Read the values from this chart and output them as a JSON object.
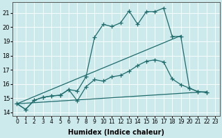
{
  "bg_color": "#cce9ec",
  "grid_color": "#aad4d8",
  "line_color": "#1e6b6b",
  "xlim": [
    -0.5,
    23.5
  ],
  "ylim": [
    13.75,
    21.75
  ],
  "xtick_vals": [
    0,
    1,
    2,
    3,
    4,
    5,
    6,
    7,
    8,
    9,
    10,
    11,
    12,
    13,
    14,
    15,
    16,
    17,
    18,
    19,
    20,
    21,
    22,
    23
  ],
  "ytick_vals": [
    14,
    15,
    16,
    17,
    18,
    19,
    20,
    21
  ],
  "xlabel": "Humidex (Indice chaleur)",
  "line_flat": {
    "x": [
      0,
      22
    ],
    "y": [
      14.6,
      15.45
    ]
  },
  "line_diag": {
    "x": [
      0,
      19
    ],
    "y": [
      14.6,
      19.4
    ]
  },
  "curve_mid": {
    "x": [
      0,
      1,
      2,
      3,
      4,
      5,
      6,
      7,
      8,
      9,
      10,
      11,
      12,
      13,
      14,
      15,
      16,
      17,
      18,
      19,
      20,
      21,
      22
    ],
    "y": [
      14.6,
      14.2,
      14.85,
      15.05,
      15.15,
      15.2,
      15.6,
      14.8,
      15.8,
      16.3,
      16.2,
      16.5,
      16.6,
      16.9,
      17.3,
      17.6,
      17.7,
      17.55,
      16.35,
      15.95,
      15.7,
      15.45,
      15.4
    ]
  },
  "curve_top": {
    "x": [
      0,
      1,
      2,
      3,
      4,
      5,
      6,
      7,
      8,
      9,
      10,
      11,
      12,
      13,
      14,
      15,
      16,
      17,
      18,
      19,
      20,
      21,
      22
    ],
    "y": [
      14.6,
      14.2,
      14.85,
      15.05,
      15.15,
      15.2,
      15.6,
      15.5,
      16.5,
      19.3,
      20.2,
      20.05,
      20.3,
      21.15,
      20.2,
      21.1,
      21.1,
      21.35,
      19.35,
      19.35,
      15.7,
      15.45,
      15.4
    ]
  }
}
